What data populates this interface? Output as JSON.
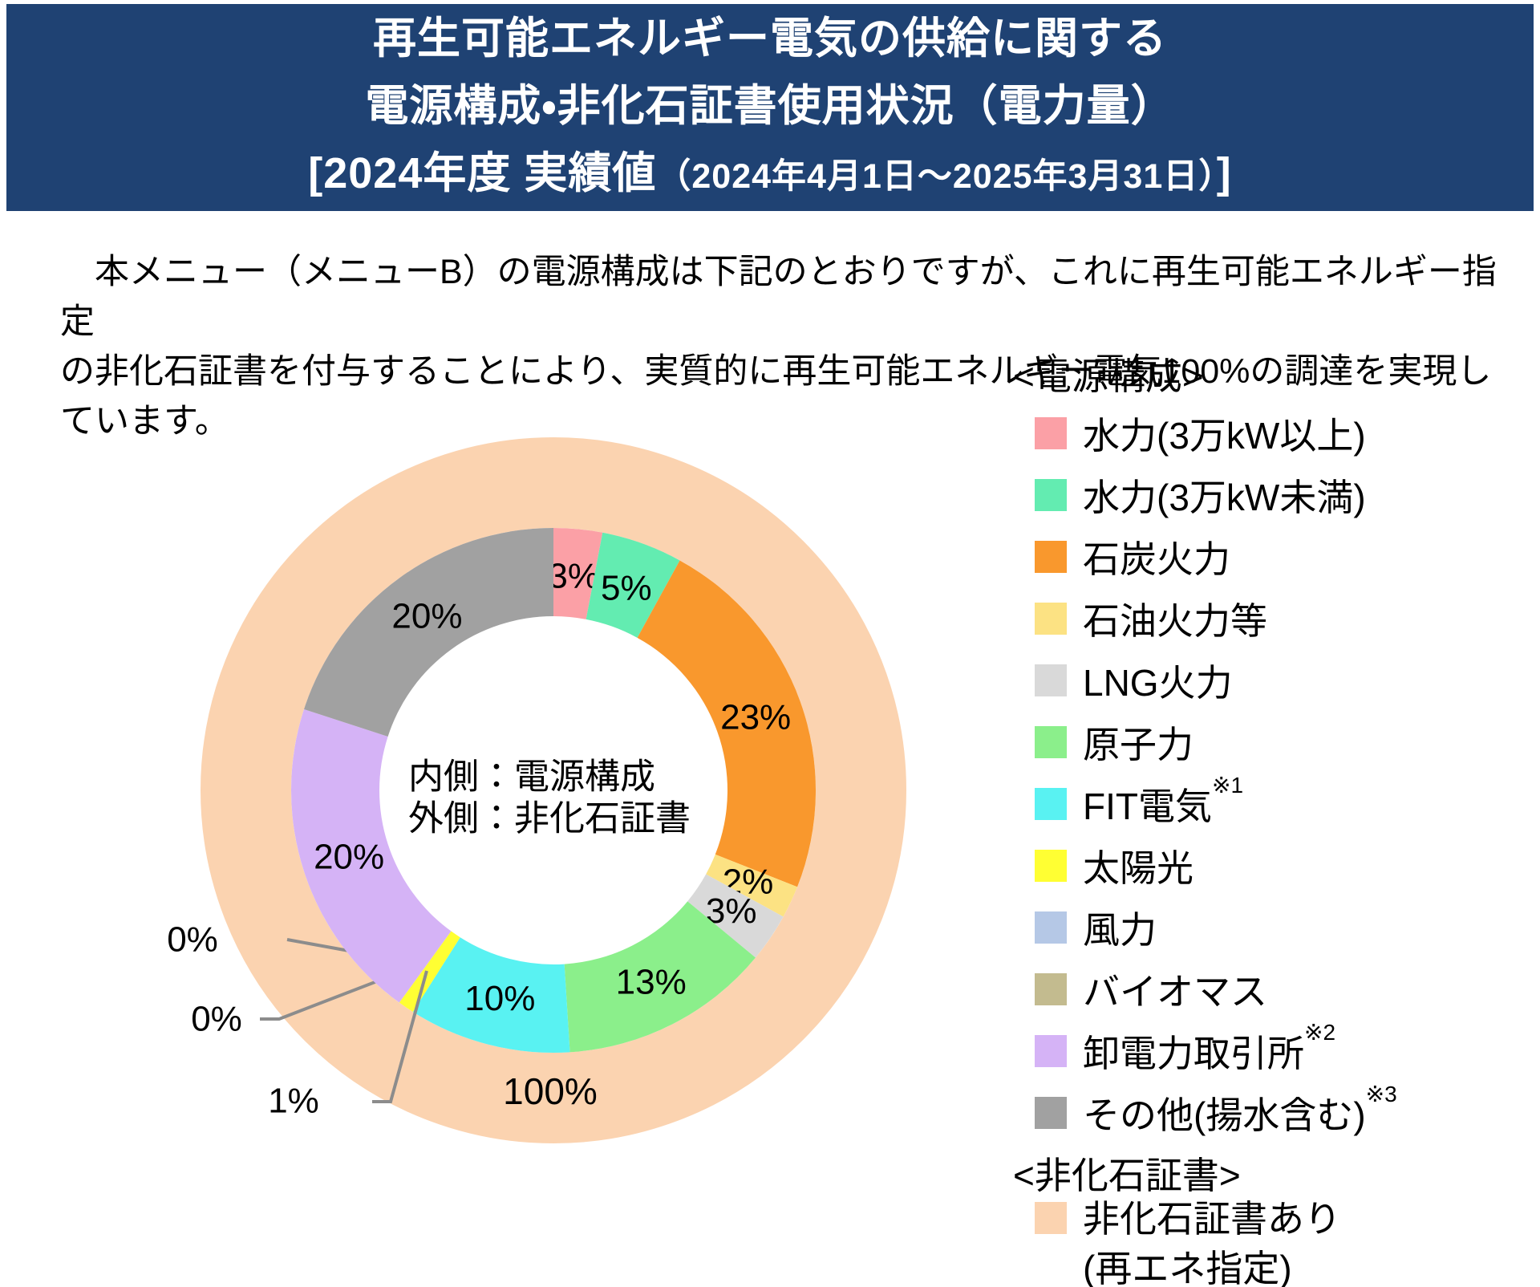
{
  "header": {
    "bg_color": "#1F4273",
    "line1": "再生可能エネルギー電気の供給に関する",
    "line2": "電源構成・非化石証書使用状況（電力量）",
    "line3_prefix": "[2024年度 実績値",
    "line3_small": "（2024年4月1日～2025年3月31日）",
    "line3_suffix": "]"
  },
  "intro_lines": [
    "　本メニュー（メニューB）の電源構成は下記のとおりですが、これに再生可能エネルギー指定",
    "の非化石証書を付与することにより、実質的に再生可能エネルギー電気100%の調達を実現し",
    "ています。"
  ],
  "chart_data": {
    "type": "donut",
    "unit": "%",
    "center_text": [
      "内側：電源構成",
      "外側：非化石証書"
    ],
    "inner_ring": {
      "name": "電源構成",
      "segments": [
        {
          "label": "水力(3万kW以上)",
          "value": 3,
          "color": "#FBA0A6"
        },
        {
          "label": "水力(3万kW未満)",
          "value": 5,
          "color": "#63ECB1"
        },
        {
          "label": "石炭火力",
          "value": 23,
          "color": "#F9982D"
        },
        {
          "label": "石油火力等",
          "value": 2,
          "color": "#FCE283"
        },
        {
          "label": "LNG火力",
          "value": 3,
          "color": "#D9D9D9"
        },
        {
          "label": "原子力",
          "value": 13,
          "color": "#8BEF8B"
        },
        {
          "label": "FIT電気",
          "value": 10,
          "color": "#59F2F2"
        },
        {
          "label": "太陽光",
          "value": 1,
          "color": "#FFFF33"
        },
        {
          "label": "風力",
          "value": 0,
          "color": "#B5C8E6"
        },
        {
          "label": "バイオマス",
          "value": 0,
          "color": "#C3BB8F"
        },
        {
          "label": "卸電力取引所",
          "value": 20,
          "color": "#D5B3F6"
        },
        {
          "label": "その他(揚水含む)",
          "value": 20,
          "color": "#A1A1A1"
        }
      ]
    },
    "outer_ring": {
      "name": "非化石証書",
      "segments": [
        {
          "label": "非化石証書あり(再エネ指定)",
          "value": 100,
          "color": "#FBD3B0"
        }
      ]
    }
  },
  "legend": {
    "groups": [
      {
        "header": "<電源構成>",
        "items": [
          {
            "label": "水力(3万kW以上)",
            "color": "#FBA0A6"
          },
          {
            "label": "水力(3万kW未満)",
            "color": "#63ECB1"
          },
          {
            "label": "石炭火力",
            "color": "#F9982D"
          },
          {
            "label": "石油火力等",
            "color": "#FCE283"
          },
          {
            "label": "LNG火力",
            "color": "#D9D9D9"
          },
          {
            "label": "原子力",
            "color": "#8BEF8B"
          },
          {
            "label": "FIT電気",
            "color": "#59F2F2",
            "sup": "※1"
          },
          {
            "label": "太陽光",
            "color": "#FFFF33"
          },
          {
            "label": "風力",
            "color": "#B5C8E6"
          },
          {
            "label": "バイオマス",
            "color": "#C3BB8F"
          },
          {
            "label": "卸電力取引所",
            "color": "#D5B3F6",
            "sup": "※2"
          },
          {
            "label": "その他(揚水含む)",
            "color": "#A1A1A1",
            "sup": "※3"
          }
        ]
      },
      {
        "header": "<非化石証書>",
        "items": [
          {
            "label_lines": [
              "非化石証書あり",
              "(再エネ指定)"
            ],
            "color": "#FBD3B0"
          }
        ]
      }
    ]
  }
}
